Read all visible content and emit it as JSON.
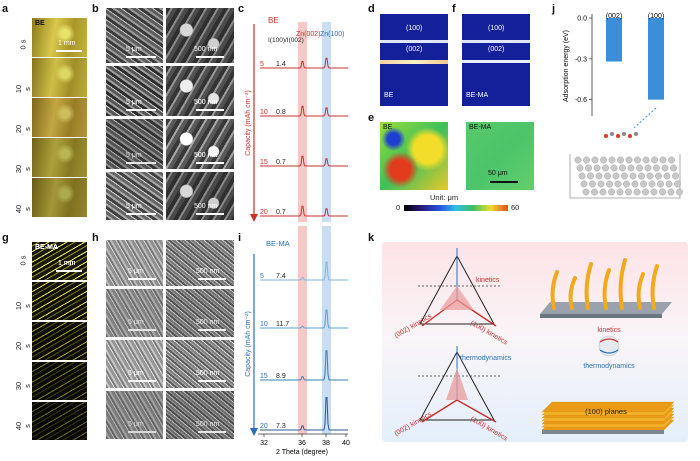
{
  "panel_labels": [
    "a",
    "b",
    "c",
    "d",
    "e",
    "f",
    "g",
    "h",
    "i",
    "j",
    "k"
  ],
  "optical": {
    "be_tag": "BE",
    "bema_tag": "BE-MA",
    "times": [
      "0 s",
      "10 s",
      "20 s",
      "30 s",
      "40 s"
    ],
    "scale": "1 mm"
  },
  "sem": {
    "rows_left": [
      "5 μm",
      "5 μm",
      "5 μm",
      "5 μm"
    ],
    "rows_right": [
      "500 nm",
      "500 nm",
      "500 nm",
      "500 nm"
    ]
  },
  "xrd_top": {
    "label": "BE",
    "peak1": "Zn(002)",
    "peak2": "Zn(100)",
    "ratio_header": "I(100)/I(002)",
    "capacities": [
      "5",
      "10",
      "15",
      "20"
    ],
    "ratios": [
      "1.4",
      "0.8",
      "0.7",
      "0.7"
    ],
    "yaxis": "Capacity (mAh cm⁻²)"
  },
  "xrd_bottom": {
    "label": "BE-MA",
    "capacities": [
      "5",
      "10",
      "15",
      "20"
    ],
    "ratios": [
      "7.4",
      "11.7",
      "8.9",
      "7.3"
    ],
    "yaxis": "Capacity (mAh cm⁻²)",
    "xticks": [
      "32",
      "36",
      "38",
      "40"
    ],
    "xlabel": "2 Theta (degree)"
  },
  "sim": {
    "d_planes": [
      "(100)",
      "(002)"
    ],
    "d_tag": "BE",
    "f_planes": [
      "(100)",
      "(002)"
    ],
    "f_tag": "BE-MA",
    "e_left": "BE",
    "e_right": "BE-MA",
    "scale": "50 μm",
    "unit": "Unit: μm",
    "cbar_min": "0",
    "cbar_max": "60"
  },
  "chart_data": {
    "type": "bar",
    "title": "",
    "categories": [
      "(002)",
      "(100)"
    ],
    "values": [
      -0.32,
      -0.6
    ],
    "ylabel": "Adsorption energy (eV)",
    "yticks": [
      "0.0",
      "-0.3",
      "-0.6"
    ],
    "ylim": [
      -0.72,
      0.0
    ]
  },
  "diagram_k": {
    "kinetics": "kinetics",
    "thermodynamics": "thermodynamics",
    "k002": "(002) kinetics",
    "k100": "(100) kinetics",
    "planes": "(100) planes"
  },
  "colors": {
    "be_red": "#c9302c",
    "bema_blue": "#2c6fb5",
    "bar_blue": "#3b8fd9"
  }
}
